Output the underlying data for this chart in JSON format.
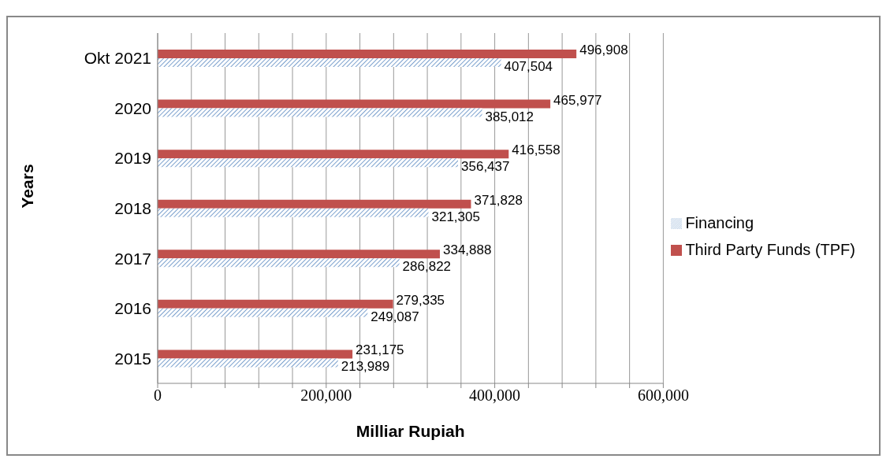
{
  "chart_data": {
    "type": "bar",
    "orientation": "horizontal",
    "categories": [
      "Okt 2021",
      "2020",
      "2019",
      "2018",
      "2017",
      "2016",
      "2015"
    ],
    "series": [
      {
        "name": "Third Party Funds (TPF)",
        "color": "#c0504d",
        "values": [
          496908,
          465977,
          416558,
          371828,
          334888,
          279335,
          231175
        ],
        "value_labels": [
          "496,908",
          "465,977",
          "416,558",
          "371,828",
          "334,888",
          "279,335",
          "231,175"
        ]
      },
      {
        "name": "Financing",
        "color": "#4f81bd",
        "values": [
          407504,
          385012,
          356437,
          321305,
          286822,
          249087,
          213989
        ],
        "value_labels": [
          "407,504",
          "385,012",
          "356,437",
          "321,305",
          "286,822",
          "249,087",
          "213,989"
        ]
      }
    ],
    "xlim": [
      0,
      600000
    ],
    "xticks": [
      0,
      {
        "value": 40000,
        "label": null
      },
      {
        "value": 80000,
        "label": null
      },
      {
        "value": 120000,
        "label": null
      },
      {
        "value": 160000,
        "label": null
      },
      {
        "value": 200000,
        "label": "200,000"
      },
      {
        "value": 240000,
        "label": null
      },
      {
        "value": 280000,
        "label": null
      },
      {
        "value": 320000,
        "label": null
      },
      {
        "value": 360000,
        "label": null
      },
      {
        "value": 400000,
        "label": "400,000"
      },
      {
        "value": 440000,
        "label": null
      },
      {
        "value": 480000,
        "label": null
      },
      {
        "value": 520000,
        "label": null
      },
      {
        "value": 560000,
        "label": null
      },
      {
        "value": 600000,
        "label": "600,000"
      }
    ],
    "xlabel": "Milliar Rupiah",
    "ylabel": "Years",
    "grid": "x",
    "legend": "right"
  }
}
